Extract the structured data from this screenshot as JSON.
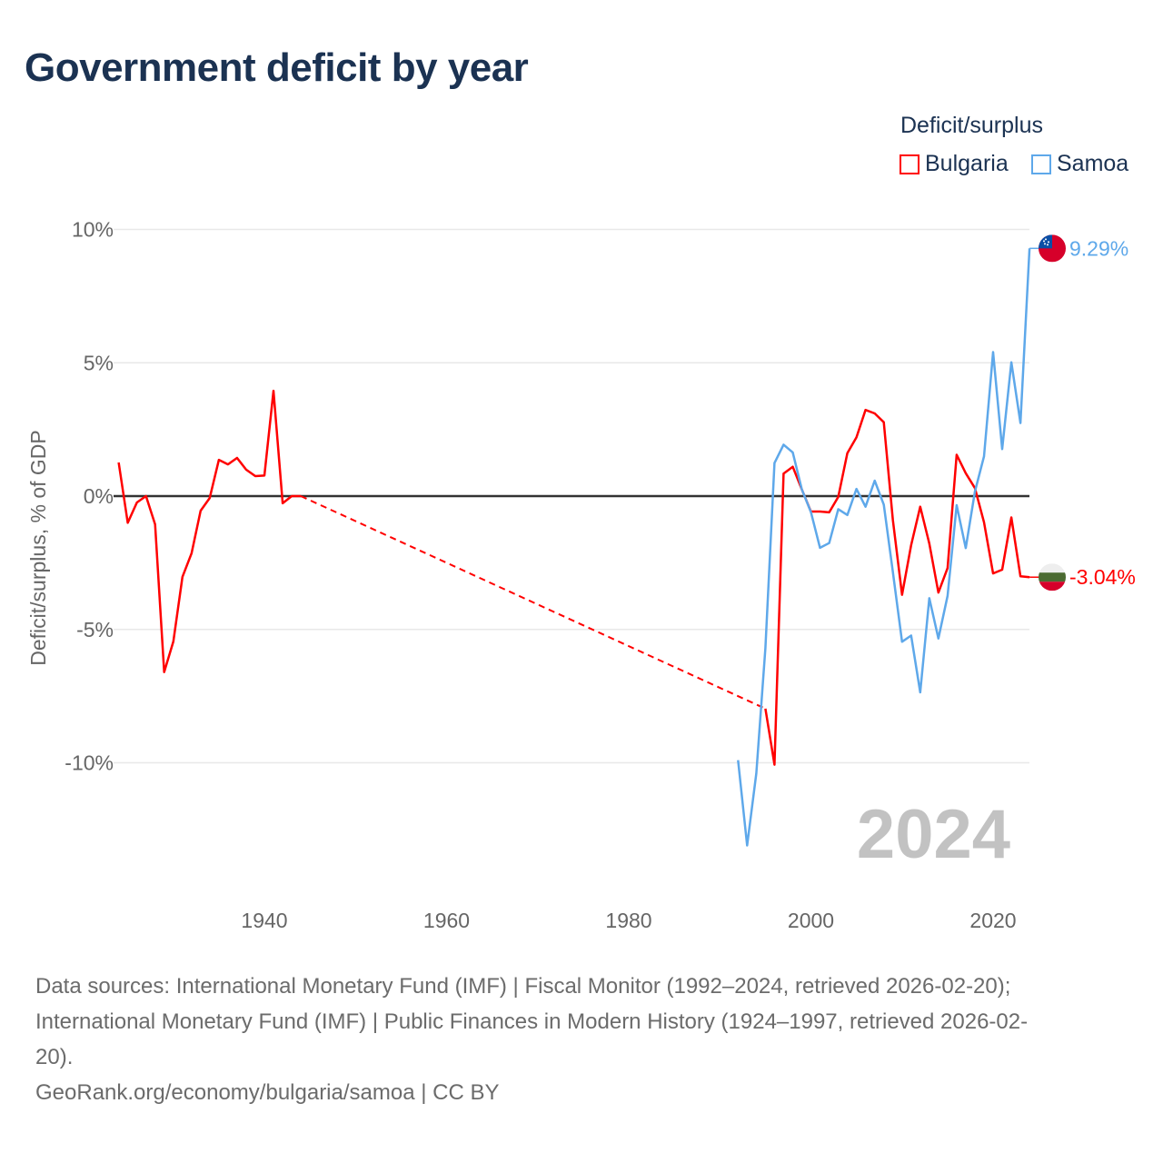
{
  "chart_data": {
    "type": "line",
    "title": "Government deficit by year",
    "ylabel": "Deficit/surplus, % of GDP",
    "xlabel": "",
    "ylim": [
      -14,
      10.7
    ],
    "xlim": [
      1923.5,
      2024
    ],
    "y_ticks": [
      {
        "value": 10,
        "label": "10%"
      },
      {
        "value": 5,
        "label": "5%"
      },
      {
        "value": 0,
        "label": "0%"
      },
      {
        "value": -5,
        "label": "-5%"
      },
      {
        "value": -10,
        "label": "-10%"
      }
    ],
    "x_ticks": [
      {
        "value": 1940,
        "label": "1940"
      },
      {
        "value": 1960,
        "label": "1960"
      },
      {
        "value": 1980,
        "label": "1980"
      },
      {
        "value": 2000,
        "label": "2000"
      },
      {
        "value": 2020,
        "label": "2020"
      }
    ],
    "grid": true,
    "legend_title": "Deficit/surplus",
    "legend_position": "top-right",
    "year_watermark": "2024",
    "series": [
      {
        "name": "Bulgaria",
        "color": "#ff0000",
        "end_label": "-3.04%",
        "dashed_gap": [
          1944,
          1995
        ],
        "x": [
          1924,
          1925,
          1926,
          1927,
          1928,
          1929,
          1930,
          1931,
          1932,
          1933,
          1934,
          1935,
          1936,
          1937,
          1938,
          1939,
          1940,
          1941,
          1942,
          1943,
          1944,
          1995,
          1996,
          1997,
          1998,
          1999,
          2000,
          2001,
          2002,
          2003,
          2004,
          2005,
          2006,
          2007,
          2008,
          2009,
          2010,
          2011,
          2012,
          2013,
          2014,
          2015,
          2016,
          2017,
          2018,
          2019,
          2020,
          2021,
          2022,
          2023,
          2024
        ],
        "values": [
          1.26,
          -1.0,
          -0.24,
          0,
          -1.06,
          -6.6,
          -5.45,
          -3.03,
          -2.15,
          -0.55,
          -0.07,
          1.36,
          1.19,
          1.43,
          0.99,
          0.75,
          0.77,
          3.95,
          -0.27,
          0,
          0,
          -7.97,
          -10.07,
          0.84,
          1.1,
          0.25,
          -0.58,
          -0.58,
          -0.61,
          -0.03,
          1.61,
          2.2,
          3.23,
          3.1,
          2.77,
          -0.9,
          -3.7,
          -1.84,
          -0.4,
          -1.78,
          -3.62,
          -2.7,
          1.55,
          0.86,
          0.3,
          -0.98,
          -2.9,
          -2.76,
          -0.8,
          -3.01,
          -3.04
        ]
      },
      {
        "name": "Samoa",
        "color": "#5ea8ea",
        "end_label": "9.29%",
        "x": [
          1992,
          1993,
          1994,
          1995,
          1996,
          1997,
          1998,
          1999,
          2000,
          2001,
          2002,
          2003,
          2004,
          2005,
          2006,
          2007,
          2008,
          2009,
          2010,
          2011,
          2012,
          2013,
          2014,
          2015,
          2016,
          2017,
          2018,
          2019,
          2020,
          2021,
          2022,
          2023,
          2024
        ],
        "values": [
          -9.9,
          -13.1,
          -10.4,
          -5.7,
          1.24,
          1.93,
          1.64,
          0.25,
          -0.6,
          -1.94,
          -1.76,
          -0.49,
          -0.71,
          0.27,
          -0.4,
          0.58,
          -0.32,
          -2.85,
          -5.46,
          -5.23,
          -7.36,
          -3.83,
          -5.34,
          -3.74,
          -0.34,
          -1.95,
          0.17,
          1.49,
          5.4,
          1.76,
          5.02,
          2.74,
          9.29
        ]
      }
    ]
  },
  "footer": {
    "sources_line1": "Data sources: International Monetary Fund (IMF) | Fiscal Monitor (1992–2024, retrieved 2026-02-20);",
    "sources_line2": "International Monetary Fund (IMF) | Public Finances in Modern History (1924–1997, retrieved 2026-02-",
    "sources_line3": "20).",
    "attribution": "GeoRank.org/economy/bulgaria/samoa | CC BY"
  }
}
